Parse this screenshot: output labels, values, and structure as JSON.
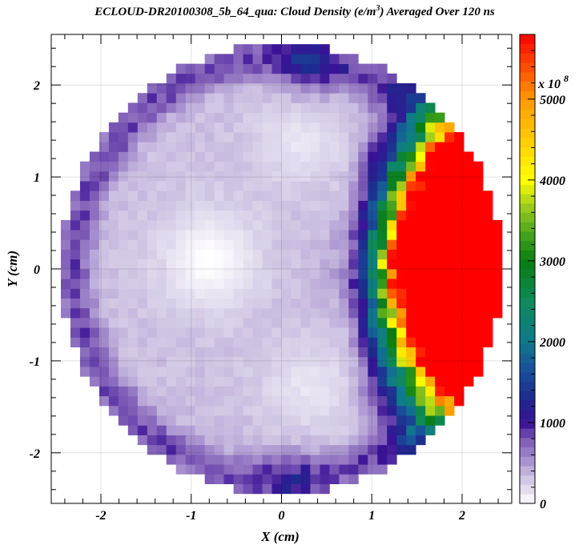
{
  "chart_data": {
    "type": "heatmap",
    "title": {
      "pre": "ECLOUD-DR20100308_5b_64_qua: Cloud Density (e/m",
      "sup": "3",
      "post": ") Averaged Over 120 ns"
    },
    "xlabel": "X (cm)",
    "ylabel": "Y (cm)",
    "xlim": [
      -2.55,
      2.55
    ],
    "ylim": [
      -2.55,
      2.55
    ],
    "x_ticks": [
      {
        "value": -2,
        "label": "-2"
      },
      {
        "value": -1,
        "label": "-1"
      },
      {
        "value": 0,
        "label": "0"
      },
      {
        "value": 1,
        "label": "1"
      },
      {
        "value": 2,
        "label": "2"
      }
    ],
    "y_ticks": [
      {
        "value": 2,
        "label": "2"
      },
      {
        "value": 1,
        "label": "1"
      },
      {
        "value": 0,
        "label": "0"
      },
      {
        "value": -1,
        "label": "-1"
      },
      {
        "value": -2,
        "label": "-2"
      }
    ],
    "grid": true,
    "grid_size": 48,
    "aperture_radius_cm": 2.45,
    "colorbar": {
      "min": 0,
      "max": 5800,
      "multiplier_base": "x 10",
      "multiplier_exp": "8",
      "ticks": [
        {
          "value": 0,
          "label": "0"
        },
        {
          "value": 1000,
          "label": "1000"
        },
        {
          "value": 2000,
          "label": "2000"
        },
        {
          "value": 3000,
          "label": "3000"
        },
        {
          "value": 4000,
          "label": "4000"
        },
        {
          "value": 5000,
          "label": "5000"
        }
      ],
      "colors": [
        {
          "value": 0,
          "color": "#ffffff"
        },
        {
          "value": 150,
          "color": "#e6e0f0"
        },
        {
          "value": 350,
          "color": "#c9bde0"
        },
        {
          "value": 550,
          "color": "#a48ccc"
        },
        {
          "value": 800,
          "color": "#7a58b4"
        },
        {
          "value": 1000,
          "color": "#3a1296"
        },
        {
          "value": 1300,
          "color": "#1e2a8e"
        },
        {
          "value": 1650,
          "color": "#1a4f9a"
        },
        {
          "value": 2000,
          "color": "#0f7a8c"
        },
        {
          "value": 2500,
          "color": "#0e8a5a"
        },
        {
          "value": 3000,
          "color": "#0a7d10"
        },
        {
          "value": 3300,
          "color": "#3ea11c"
        },
        {
          "value": 3650,
          "color": "#96c81e"
        },
        {
          "value": 4000,
          "color": "#ffff00"
        },
        {
          "value": 4500,
          "color": "#ffcc00"
        },
        {
          "value": 5000,
          "color": "#ff9900"
        },
        {
          "value": 5450,
          "color": "#ff4400"
        },
        {
          "value": 5800,
          "color": "#ff0000"
        }
      ]
    },
    "density_model": {
      "unit_exponent": 8,
      "base": 330,
      "components": [
        {
          "kind": "right_wall_gradient",
          "x_start": 0.6,
          "x_scale": 0.6,
          "power": 2.3,
          "amplitude": 4200,
          "y_width": 1.15
        },
        {
          "kind": "wall_band",
          "r_center": 2.3,
          "r_width": 0.2,
          "amplitude": 500
        },
        {
          "kind": "depletion",
          "x": -0.8,
          "y": 0.1,
          "width": 0.55,
          "amplitude": -330
        },
        {
          "kind": "depletion",
          "x": 0.2,
          "y": 1.4,
          "width": 0.5,
          "amplitude": -200
        },
        {
          "kind": "depletion",
          "x": 0.3,
          "y": -1.3,
          "width": 0.5,
          "amplitude": -200
        },
        {
          "kind": "enhancement",
          "x": 1.0,
          "y": 0.0,
          "width": 0.45,
          "amplitude": 300
        },
        {
          "kind": "enhancement",
          "x": 0.3,
          "y": 2.25,
          "width": 0.35,
          "amplitude": 550
        },
        {
          "kind": "enhancement",
          "x": 0.1,
          "y": -2.3,
          "width": 0.35,
          "amplitude": 350
        }
      ]
    }
  }
}
